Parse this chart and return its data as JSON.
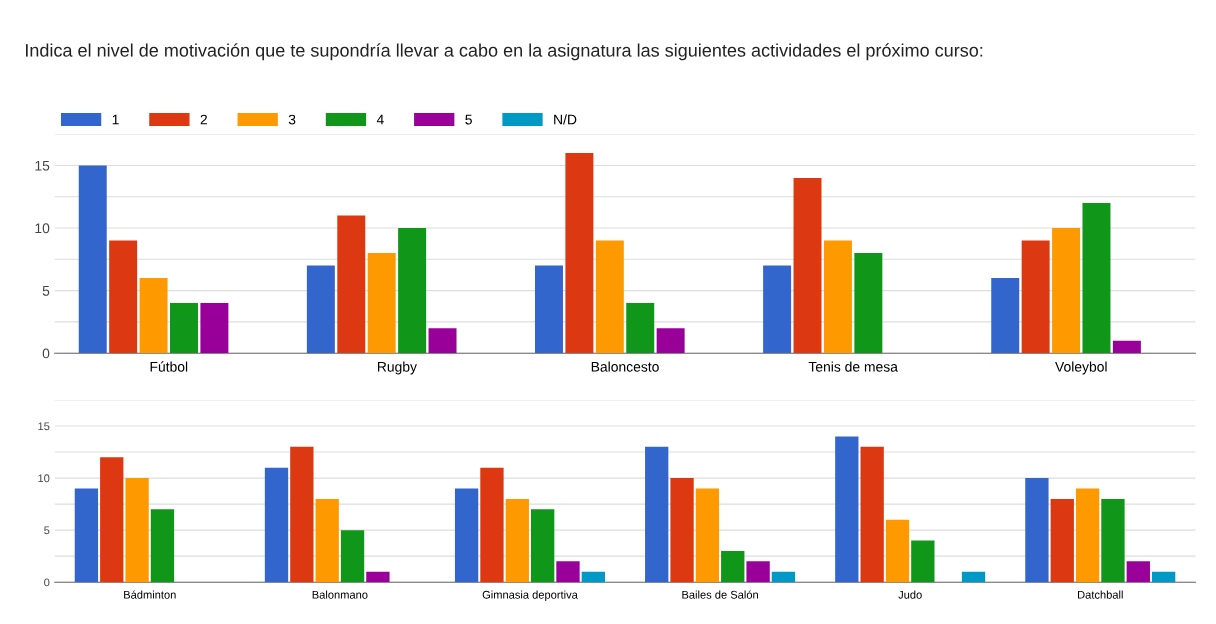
{
  "chart_data": [
    {
      "type": "bar",
      "title": "Indica el nivel de motivación que te supondría llevar a cabo en la asignatura las siguientes actividades el próximo curso:",
      "categories": [
        "Fútbol",
        "Rugby",
        "Baloncesto",
        "Tenis de mesa",
        "Voleybol"
      ],
      "series": [
        {
          "name": "1",
          "color": "#3366cc",
          "values": [
            15,
            7,
            7,
            7,
            6
          ]
        },
        {
          "name": "2",
          "color": "#dc3912",
          "values": [
            9,
            11,
            16,
            14,
            9
          ]
        },
        {
          "name": "3",
          "color": "#ff9900",
          "values": [
            6,
            8,
            9,
            9,
            10
          ]
        },
        {
          "name": "4",
          "color": "#109618",
          "values": [
            4,
            10,
            4,
            8,
            12
          ]
        },
        {
          "name": "5",
          "color": "#990099",
          "values": [
            4,
            2,
            2,
            0,
            1
          ]
        },
        {
          "name": "N/D",
          "color": "#0099c6",
          "values": [
            0,
            0,
            0,
            0,
            0
          ]
        }
      ],
      "ylim": [
        0,
        17.5
      ],
      "yticks": [
        0,
        {
          "value": 2.5,
          "label": null
        },
        5,
        {
          "value": 7.5,
          "label": null
        },
        10,
        {
          "value": 12.5,
          "label": null
        },
        15,
        {
          "value": 17.5,
          "label": null
        }
      ],
      "grid": "y",
      "legend": "top left"
    },
    {
      "type": "bar",
      "categories": [
        "Bádminton",
        "Balonmano",
        "Gimnasia deportiva",
        "Bailes de Salón",
        "Judo",
        "Datchball"
      ],
      "series": [
        {
          "color": "#3366cc",
          "values": [
            9,
            11,
            9,
            13,
            14,
            10
          ]
        },
        {
          "color": "#dc3912",
          "values": [
            12,
            13,
            11,
            10,
            13,
            8
          ]
        },
        {
          "color": "#ff9900",
          "values": [
            10,
            8,
            8,
            9,
            6,
            9
          ]
        },
        {
          "color": "#109618",
          "values": [
            7,
            5,
            7,
            3,
            4,
            8
          ]
        },
        {
          "color": "#990099",
          "values": [
            0,
            1,
            2,
            2,
            0,
            2
          ]
        },
        {
          "color": "#0099c6",
          "values": [
            0,
            0,
            1,
            1,
            1,
            1
          ]
        }
      ],
      "ylim": [
        0,
        17.5
      ],
      "yticks": [
        0,
        {
          "value": 2.5,
          "label": null
        },
        5,
        {
          "value": 7.5,
          "label": null
        },
        10,
        {
          "value": 12.5,
          "label": null
        },
        15,
        {
          "value": 17.5,
          "label": null
        }
      ],
      "grid": "y"
    }
  ]
}
